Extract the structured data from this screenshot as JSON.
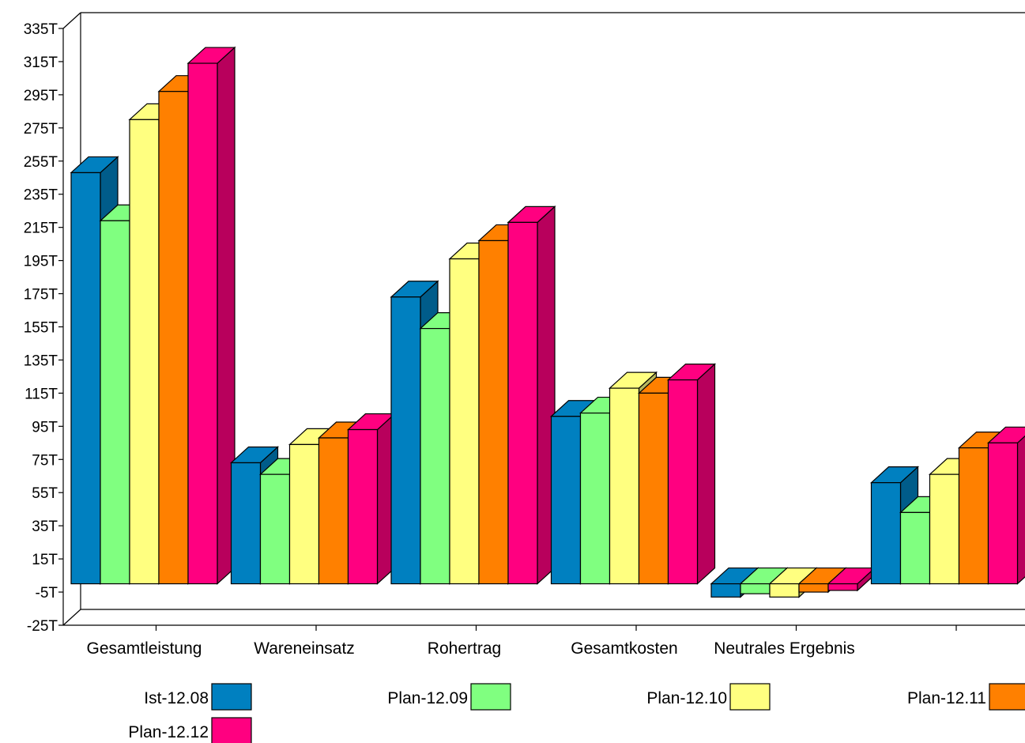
{
  "chart_data": {
    "type": "bar",
    "categories": [
      "Gesamtleistung",
      "Wareneinsatz",
      "Rohertrag",
      "Gesamtkosten",
      "Neutrales Ergebnis",
      ""
    ],
    "series": [
      {
        "name": "Ist-12.08",
        "color": "#0080c0",
        "values": [
          248,
          73,
          173,
          101,
          -8,
          61
        ]
      },
      {
        "name": "Plan-12.09",
        "color": "#80ff80",
        "values": [
          219,
          66,
          154,
          103,
          -6,
          43
        ]
      },
      {
        "name": "Plan-12.10",
        "color": "#ffff80",
        "values": [
          280,
          84,
          196,
          118,
          -8,
          66
        ]
      },
      {
        "name": "Plan-12.11",
        "color": "#ff8000",
        "values": [
          297,
          88,
          207,
          115,
          -5,
          82
        ]
      },
      {
        "name": "Plan-12.12",
        "color": "#ff0080",
        "values": [
          314,
          93,
          218,
          123,
          -4,
          85
        ]
      }
    ],
    "ylim": [
      -25,
      335
    ],
    "yticks": [
      "-25T",
      "-5T",
      "15T",
      "35T",
      "55T",
      "75T",
      "95T",
      "115T",
      "135T",
      "155T",
      "175T",
      "195T",
      "215T",
      "235T",
      "255T",
      "275T",
      "295T",
      "315T",
      "335T"
    ],
    "ytick_values": [
      -25,
      -5,
      15,
      35,
      55,
      75,
      95,
      115,
      135,
      155,
      175,
      195,
      215,
      235,
      255,
      275,
      295,
      315,
      335
    ],
    "xlabel": "",
    "ylabel": "",
    "title": "",
    "grid": false,
    "legend_position": "bottom"
  }
}
